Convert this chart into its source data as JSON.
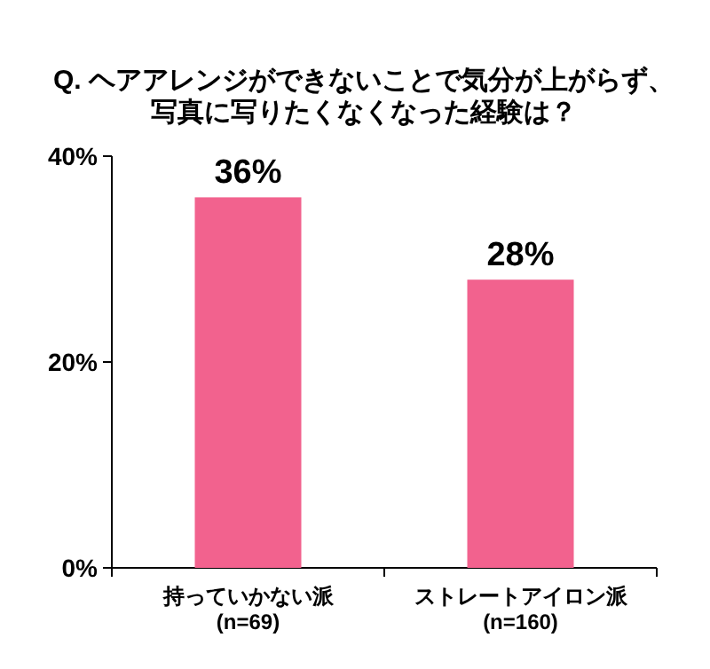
{
  "chart_data": {
    "type": "bar",
    "title": "Q. ヘアアレンジができないことで気分が上がらず、",
    "subtitle": "写真に写りたくなくなった経験は？",
    "categories": [
      "持っていかない派\n(n=69)",
      "ストレートアイロン派\n(n=160)"
    ],
    "values": [
      36,
      28
    ],
    "value_labels": [
      "36%",
      "28%"
    ],
    "color": "#f2628e",
    "ylim": [
      0,
      40
    ],
    "yticks": [
      {
        "value": 0,
        "label": "0%"
      },
      {
        "value": 20,
        "label": "20%"
      },
      {
        "value": 40,
        "label": "40%"
      }
    ],
    "grid": false
  }
}
